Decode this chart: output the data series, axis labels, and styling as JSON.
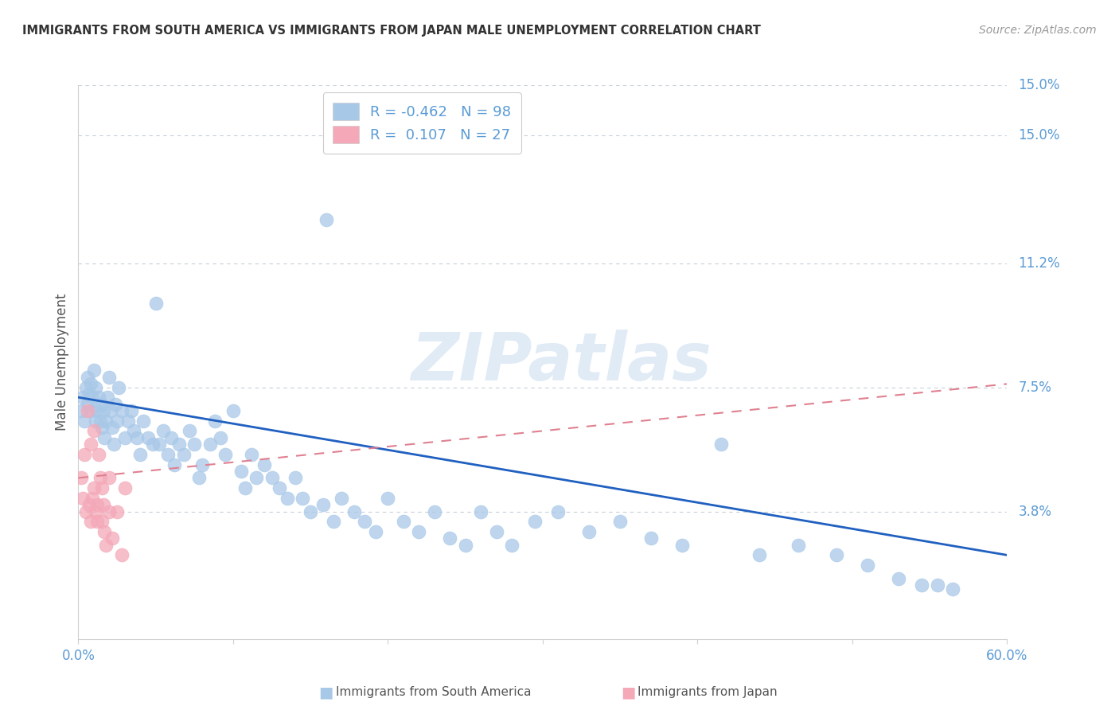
{
  "title": "IMMIGRANTS FROM SOUTH AMERICA VS IMMIGRANTS FROM JAPAN MALE UNEMPLOYMENT CORRELATION CHART",
  "source": "Source: ZipAtlas.com",
  "ylabel": "Male Unemployment",
  "xlim": [
    0.0,
    0.6
  ],
  "ylim": [
    0.0,
    0.165
  ],
  "yticks": [
    0.038,
    0.075,
    0.112,
    0.15
  ],
  "ytick_labels": [
    "3.8%",
    "7.5%",
    "11.2%",
    "15.0%"
  ],
  "xticks": [
    0.0,
    0.1,
    0.2,
    0.3,
    0.4,
    0.5,
    0.6
  ],
  "xtick_labels": [
    "0.0%",
    "",
    "",
    "",
    "",
    "",
    "60.0%"
  ],
  "series1_color": "#A8C8E8",
  "series2_color": "#F4A8B8",
  "trend1_color": "#2060C0",
  "trend2_color": "#E08090",
  "R1": -0.462,
  "N1": 98,
  "R2": 0.107,
  "N2": 27,
  "watermark": "ZIPatlas",
  "background_color": "#ffffff",
  "grid_color": "#C8D0D8",
  "label1": "Immigrants from South America",
  "label2": "Immigrants from Japan",
  "title_color": "#333333",
  "axis_color": "#5B9BD5",
  "tick_color": "#888888",
  "scatter1_x": [
    0.002,
    0.003,
    0.004,
    0.005,
    0.006,
    0.006,
    0.007,
    0.008,
    0.008,
    0.009,
    0.01,
    0.011,
    0.011,
    0.012,
    0.013,
    0.014,
    0.015,
    0.015,
    0.016,
    0.017,
    0.018,
    0.019,
    0.02,
    0.021,
    0.022,
    0.023,
    0.024,
    0.025,
    0.026,
    0.028,
    0.03,
    0.032,
    0.034,
    0.036,
    0.038,
    0.04,
    0.042,
    0.045,
    0.048,
    0.05,
    0.052,
    0.055,
    0.058,
    0.06,
    0.062,
    0.065,
    0.068,
    0.072,
    0.075,
    0.078,
    0.08,
    0.085,
    0.088,
    0.092,
    0.095,
    0.1,
    0.105,
    0.108,
    0.112,
    0.115,
    0.12,
    0.125,
    0.13,
    0.135,
    0.14,
    0.145,
    0.15,
    0.158,
    0.165,
    0.17,
    0.178,
    0.185,
    0.192,
    0.2,
    0.21,
    0.22,
    0.23,
    0.24,
    0.16,
    0.25,
    0.26,
    0.27,
    0.28,
    0.295,
    0.31,
    0.33,
    0.35,
    0.37,
    0.39,
    0.415,
    0.44,
    0.465,
    0.49,
    0.51,
    0.53,
    0.545,
    0.555,
    0.565
  ],
  "scatter1_y": [
    0.068,
    0.072,
    0.065,
    0.075,
    0.07,
    0.078,
    0.073,
    0.068,
    0.076,
    0.072,
    0.08,
    0.075,
    0.065,
    0.068,
    0.072,
    0.065,
    0.063,
    0.07,
    0.068,
    0.06,
    0.065,
    0.072,
    0.078,
    0.068,
    0.063,
    0.058,
    0.07,
    0.065,
    0.075,
    0.068,
    0.06,
    0.065,
    0.068,
    0.062,
    0.06,
    0.055,
    0.065,
    0.06,
    0.058,
    0.1,
    0.058,
    0.062,
    0.055,
    0.06,
    0.052,
    0.058,
    0.055,
    0.062,
    0.058,
    0.048,
    0.052,
    0.058,
    0.065,
    0.06,
    0.055,
    0.068,
    0.05,
    0.045,
    0.055,
    0.048,
    0.052,
    0.048,
    0.045,
    0.042,
    0.048,
    0.042,
    0.038,
    0.04,
    0.035,
    0.042,
    0.038,
    0.035,
    0.032,
    0.042,
    0.035,
    0.032,
    0.038,
    0.03,
    0.125,
    0.028,
    0.038,
    0.032,
    0.028,
    0.035,
    0.038,
    0.032,
    0.035,
    0.03,
    0.028,
    0.058,
    0.025,
    0.028,
    0.025,
    0.022,
    0.018,
    0.016,
    0.016,
    0.015
  ],
  "scatter2_x": [
    0.002,
    0.003,
    0.004,
    0.005,
    0.006,
    0.007,
    0.008,
    0.009,
    0.01,
    0.011,
    0.012,
    0.013,
    0.014,
    0.015,
    0.016,
    0.017,
    0.018,
    0.02,
    0.022,
    0.025,
    0.028,
    0.03,
    0.01,
    0.008,
    0.012,
    0.015,
    0.02
  ],
  "scatter2_y": [
    0.048,
    0.042,
    0.055,
    0.038,
    0.068,
    0.04,
    0.058,
    0.042,
    0.045,
    0.038,
    0.035,
    0.055,
    0.048,
    0.035,
    0.04,
    0.032,
    0.028,
    0.048,
    0.03,
    0.038,
    0.025,
    0.045,
    0.062,
    0.035,
    0.04,
    0.045,
    0.038
  ],
  "trend1_x_start": 0.0,
  "trend1_x_end": 0.6,
  "trend1_y_start": 0.072,
  "trend1_y_end": 0.025,
  "trend2_x_start": 0.0,
  "trend2_x_end": 0.6,
  "trend2_y_start": 0.048,
  "trend2_y_end": 0.076
}
